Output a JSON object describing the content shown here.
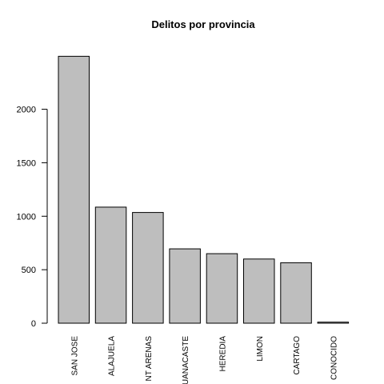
{
  "chart_data": {
    "type": "bar",
    "title": "Delitos por provincia",
    "xlabel": "",
    "ylabel": "",
    "categories": [
      "SAN JOSE",
      "ALAJUELA",
      "PUNTARENAS",
      "GUANACASTE",
      "HEREDIA",
      "LIMON",
      "CARTAGO",
      "DESCONOCIDO"
    ],
    "category_labels": [
      "SAN JOSE",
      "ALAJUELA",
      "NT ARENAS",
      "UANACASTE",
      "HEREDIA",
      "LIMON",
      "CARTAGO",
      "CONOCIDO"
    ],
    "values": [
      2495,
      1085,
      1035,
      695,
      650,
      600,
      565,
      10
    ],
    "ylim": [
      0,
      2580
    ],
    "yticks": [
      0,
      500,
      1000,
      1500,
      2000
    ],
    "bar_color": "#bebebe",
    "bar_stroke": "#000000",
    "grid": false,
    "legend": "none"
  }
}
